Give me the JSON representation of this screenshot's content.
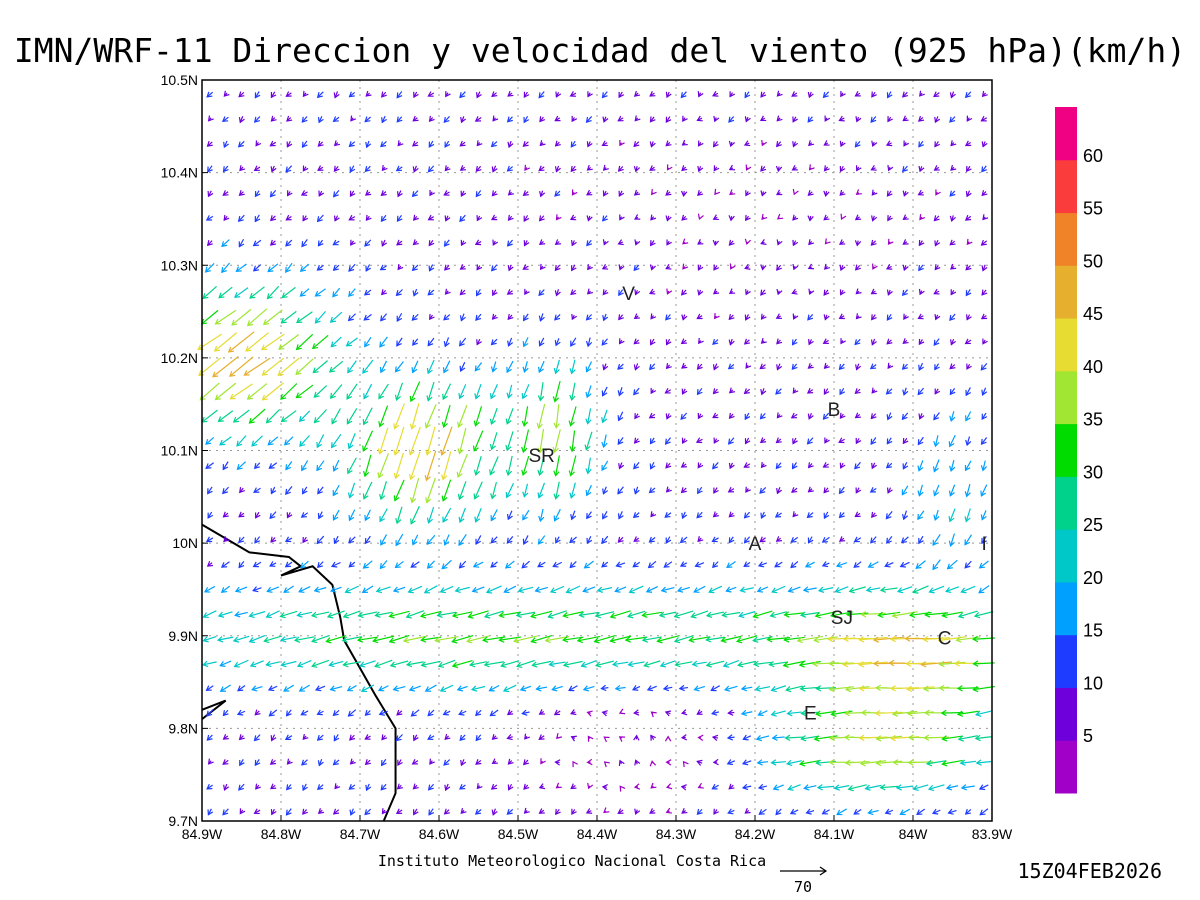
{
  "title": "IMN/WRF-11 Direccion y velocidad del viento (925 hPa)(km/h)",
  "credit": "Instituto Meteorologico Nacional Costa Rica",
  "reference_vector": {
    "label": "70",
    "value": 70
  },
  "timestamp": "15Z04FEB2026",
  "map": {
    "lon_range": [
      -84.9,
      -83.9
    ],
    "lat_range": [
      9.7,
      10.5
    ],
    "x_ticks": [
      {
        "lon": -84.9,
        "label": "84.9W"
      },
      {
        "lon": -84.8,
        "label": "84.8W"
      },
      {
        "lon": -84.7,
        "label": "84.7W"
      },
      {
        "lon": -84.6,
        "label": "84.6W"
      },
      {
        "lon": -84.5,
        "label": "84.5W"
      },
      {
        "lon": -84.4,
        "label": "84.4W"
      },
      {
        "lon": -84.3,
        "label": "84.3W"
      },
      {
        "lon": -84.2,
        "label": "84.2W"
      },
      {
        "lon": -84.1,
        "label": "84.1W"
      },
      {
        "lon": -84.0,
        "label": "84W"
      },
      {
        "lon": -83.9,
        "label": "83.9W"
      }
    ],
    "y_ticks": [
      {
        "lat": 9.7,
        "label": "9.7N"
      },
      {
        "lat": 9.8,
        "label": "9.8N"
      },
      {
        "lat": 9.9,
        "label": "9.9N"
      },
      {
        "lat": 10.0,
        "label": "10N"
      },
      {
        "lat": 10.1,
        "label": "10.1N"
      },
      {
        "lat": 10.2,
        "label": "10.2N"
      },
      {
        "lat": 10.3,
        "label": "10.3N"
      },
      {
        "lat": 10.4,
        "label": "10.4N"
      },
      {
        "lat": 10.5,
        "label": "10.5N"
      }
    ],
    "grid": true,
    "places": [
      {
        "label": "V",
        "lon": -84.36,
        "lat": 10.27
      },
      {
        "label": "B",
        "lon": -84.1,
        "lat": 10.145
      },
      {
        "label": "SR",
        "lon": -84.47,
        "lat": 10.095
      },
      {
        "label": "A",
        "lon": -84.2,
        "lat": 10.0
      },
      {
        "label": "I",
        "lon": -83.91,
        "lat": 10.0
      },
      {
        "label": "SJ",
        "lon": -84.09,
        "lat": 9.92
      },
      {
        "label": "C",
        "lon": -83.96,
        "lat": 9.898
      },
      {
        "label": "E",
        "lon": -84.13,
        "lat": 9.817
      }
    ],
    "coastline": [
      [
        -84.9,
        10.02
      ],
      [
        -84.84,
        9.99
      ],
      [
        -84.79,
        9.985
      ],
      [
        -84.775,
        9.975
      ],
      [
        -84.8,
        9.965
      ],
      [
        -84.76,
        9.975
      ],
      [
        -84.735,
        9.955
      ],
      [
        -84.725,
        9.92
      ],
      [
        -84.72,
        9.895
      ],
      [
        -84.7,
        9.865
      ],
      [
        -84.68,
        9.835
      ],
      [
        -84.655,
        9.8
      ],
      [
        -84.655,
        9.76
      ],
      [
        -84.655,
        9.73
      ],
      [
        -84.67,
        9.7
      ]
    ],
    "coastline_hook": [
      [
        -84.9,
        9.82
      ],
      [
        -84.87,
        9.83
      ],
      [
        -84.9,
        9.81
      ]
    ]
  },
  "colorbar": {
    "labels": [
      "5",
      "10",
      "15",
      "20",
      "25",
      "30",
      "35",
      "40",
      "45",
      "50",
      "55",
      "60"
    ],
    "colors": [
      "#a000c8",
      "#6e00dc",
      "#1e3cff",
      "#00a0ff",
      "#00c8c8",
      "#00d28c",
      "#00dc00",
      "#a0e632",
      "#e6dc32",
      "#e6af2d",
      "#f08228",
      "#fa3c3c",
      "#f00082"
    ]
  },
  "wind_field": {
    "lon_start": -84.9,
    "lon_step": 0.02,
    "lon_count": 50,
    "lat_start": 9.7,
    "lat_step": 0.0267,
    "lat_count": 30
  }
}
